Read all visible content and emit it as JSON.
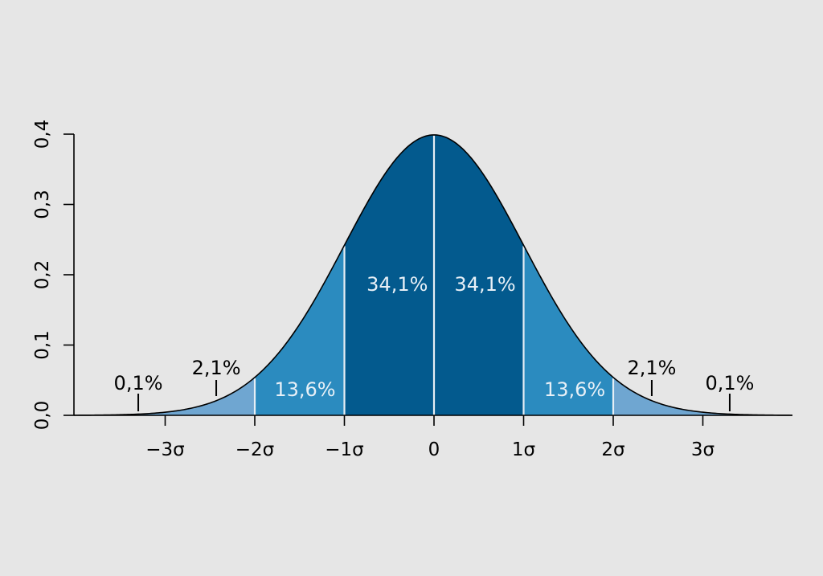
{
  "chart_data": {
    "type": "area",
    "title": "",
    "xlabel": "",
    "ylabel": "",
    "function": "standard normal probability density",
    "xlim": [
      -4,
      4
    ],
    "ylim": [
      0,
      0.4
    ],
    "x_ticks": [
      {
        "x": -3,
        "label": "−3σ"
      },
      {
        "x": -2,
        "label": "−2σ"
      },
      {
        "x": -1,
        "label": "−1σ"
      },
      {
        "x": 0,
        "label": "0"
      },
      {
        "x": 1,
        "label": "1σ"
      },
      {
        "x": 2,
        "label": "2σ"
      },
      {
        "x": 3,
        "label": "3σ"
      }
    ],
    "y_ticks": [
      {
        "y": 0.0,
        "label": "0,0"
      },
      {
        "y": 0.1,
        "label": "0,1"
      },
      {
        "y": 0.2,
        "label": "0,2"
      },
      {
        "y": 0.3,
        "label": "0,3"
      },
      {
        "y": 0.4,
        "label": "0,4"
      }
    ],
    "bands": [
      {
        "from": -4,
        "to": -3,
        "percent": 0.1,
        "label": "0,1%",
        "color": "#6fa6d1"
      },
      {
        "from": -3,
        "to": -2,
        "percent": 2.1,
        "label": "2,1%",
        "color": "#6fa6d1"
      },
      {
        "from": -2,
        "to": -1,
        "percent": 13.6,
        "label": "13,6%",
        "color": "#2b8bbf"
      },
      {
        "from": -1,
        "to": 0,
        "percent": 34.1,
        "label": "34,1%",
        "color": "#035a8e"
      },
      {
        "from": 0,
        "to": 1,
        "percent": 34.1,
        "label": "34,1%",
        "color": "#035a8e"
      },
      {
        "from": 1,
        "to": 2,
        "percent": 13.6,
        "label": "13,6%",
        "color": "#2b8bbf"
      },
      {
        "from": 2,
        "to": 3,
        "percent": 2.1,
        "label": "2,1%",
        "color": "#6fa6d1"
      },
      {
        "from": 3,
        "to": 4,
        "percent": 0.1,
        "label": "0,1%",
        "color": "#6fa6d1"
      }
    ],
    "grid": false,
    "legend": "none"
  }
}
